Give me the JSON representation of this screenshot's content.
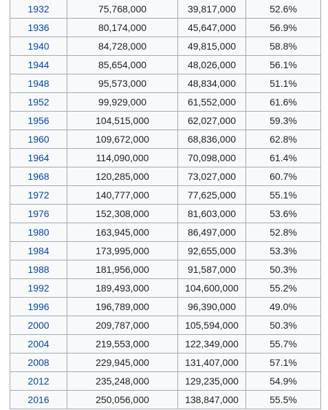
{
  "table": {
    "rows": [
      {
        "year": "1932",
        "eligible": "75,768,000",
        "voted": "39,817,000",
        "turnout": "52.6%"
      },
      {
        "year": "1936",
        "eligible": "80,174,000",
        "voted": "45,647,000",
        "turnout": "56.9%"
      },
      {
        "year": "1940",
        "eligible": "84,728,000",
        "voted": "49,815,000",
        "turnout": "58.8%"
      },
      {
        "year": "1944",
        "eligible": "85,654,000",
        "voted": "48,026,000",
        "turnout": "56.1%"
      },
      {
        "year": "1948",
        "eligible": "95,573,000",
        "voted": "48,834,000",
        "turnout": "51.1%"
      },
      {
        "year": "1952",
        "eligible": "99,929,000",
        "voted": "61,552,000",
        "turnout": "61.6%"
      },
      {
        "year": "1956",
        "eligible": "104,515,000",
        "voted": "62,027,000",
        "turnout": "59.3%"
      },
      {
        "year": "1960",
        "eligible": "109,672,000",
        "voted": "68,836,000",
        "turnout": "62.8%"
      },
      {
        "year": "1964",
        "eligible": "114,090,000",
        "voted": "70,098,000",
        "turnout": "61.4%"
      },
      {
        "year": "1968",
        "eligible": "120,285,000",
        "voted": "73,027,000",
        "turnout": "60.7%"
      },
      {
        "year": "1972",
        "eligible": "140,777,000",
        "voted": "77,625,000",
        "turnout": "55.1%"
      },
      {
        "year": "1976",
        "eligible": "152,308,000",
        "voted": "81,603,000",
        "turnout": "53.6%"
      },
      {
        "year": "1980",
        "eligible": "163,945,000",
        "voted": "86,497,000",
        "turnout": "52.8%"
      },
      {
        "year": "1984",
        "eligible": "173,995,000",
        "voted": "92,655,000",
        "turnout": "53.3%"
      },
      {
        "year": "1988",
        "eligible": "181,956,000",
        "voted": "91,587,000",
        "turnout": "50.3%"
      },
      {
        "year": "1992",
        "eligible": "189,493,000",
        "voted": "104,600,000",
        "turnout": "55.2%"
      },
      {
        "year": "1996",
        "eligible": "196,789,000",
        "voted": "96,390,000",
        "turnout": "49.0%"
      },
      {
        "year": "2000",
        "eligible": "209,787,000",
        "voted": "105,594,000",
        "turnout": "50.3%"
      },
      {
        "year": "2004",
        "eligible": "219,553,000",
        "voted": "122,349,000",
        "turnout": "55.7%"
      },
      {
        "year": "2008",
        "eligible": "229,945,000",
        "voted": "131,407,000",
        "turnout": "57.1%"
      },
      {
        "year": "2012",
        "eligible": "235,248,000",
        "voted": "129,235,000",
        "turnout": "54.9%"
      },
      {
        "year": "2016",
        "eligible": "250,056,000",
        "voted": "138,847,000",
        "turnout": "55.5%"
      }
    ]
  },
  "colors": {
    "link": "#0645ad",
    "border": "#a2a9b1",
    "cell_background": "#f8f9fa",
    "text": "#202122"
  }
}
